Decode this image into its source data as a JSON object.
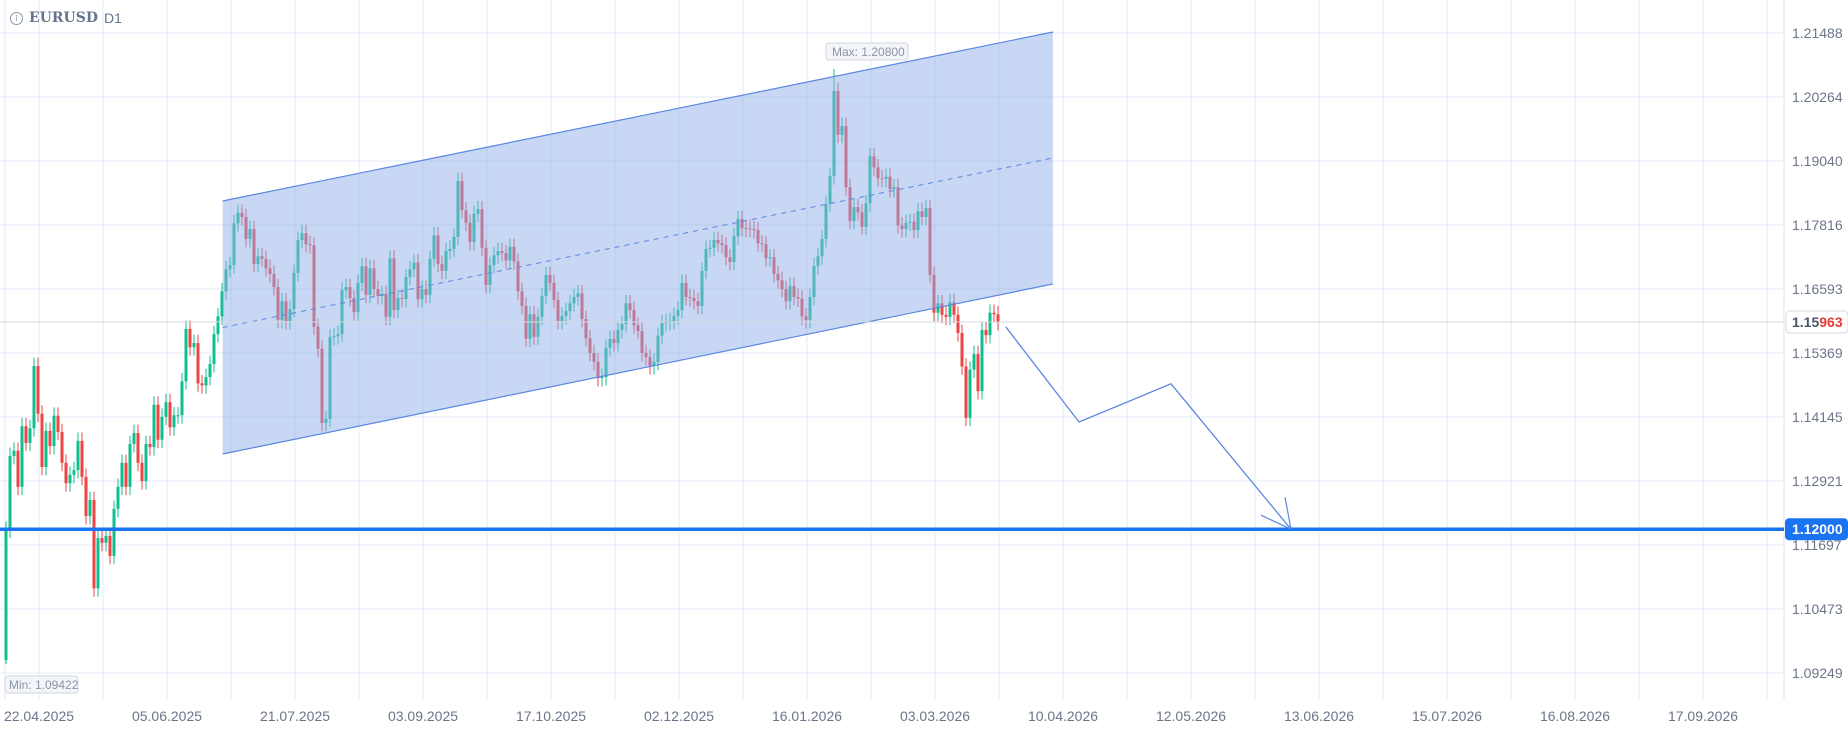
{
  "header": {
    "symbol": "EURUSD",
    "timeframe": "D1",
    "info_icon": "info-circle-icon"
  },
  "colors": {
    "up": "#0fbf8f",
    "down": "#ef4444",
    "channel_line": "#5b87e0",
    "channel_fill": "#8fb0ea",
    "level_line": "#1a73f0",
    "grid": "#e3e9f6",
    "axis_text": "#6b7589"
  },
  "chart_data": {
    "type": "candlestick",
    "title": "",
    "y_ticks": [
      "1.21488",
      "1.20264",
      "1.19040",
      "1.17816",
      "1.16593",
      "1.15369",
      "1.14145",
      "1.12921",
      "1.11697",
      "1.10473",
      "1.09249"
    ],
    "x_ticks": [
      "22.04.2025",
      "05.06.2025",
      "21.07.2025",
      "03.09.2025",
      "17.10.2025",
      "02.12.2025",
      "16.01.2026",
      "03.03.2026",
      "10.04.2026",
      "12.05.2026",
      "13.06.2026",
      "15.07.2026",
      "16.08.2026",
      "17.09.2026"
    ],
    "ylim": [
      1.0867,
      1.2183
    ],
    "first_open": 1.095,
    "closes": [
      1.1199,
      1.134,
      1.135,
      1.1281,
      1.1397,
      1.1365,
      1.1393,
      1.1512,
      1.1421,
      1.1319,
      1.1388,
      1.1359,
      1.1417,
      1.1386,
      1.1327,
      1.1288,
      1.1304,
      1.1313,
      1.1369,
      1.13,
      1.1225,
      1.1256,
      1.1087,
      1.1183,
      1.1174,
      1.1187,
      1.1149,
      1.1239,
      1.1281,
      1.1327,
      1.1281,
      1.1363,
      1.1384,
      1.1327,
      1.1292,
      1.1363,
      1.1357,
      1.1438,
      1.1371,
      1.1415,
      1.1443,
      1.1395,
      1.1418,
      1.1418,
      1.1483,
      1.1583,
      1.1548,
      1.1556,
      1.1479,
      1.1475,
      1.1491,
      1.1516,
      1.1573,
      1.1607,
      1.1655,
      1.1697,
      1.1705,
      1.1785,
      1.1805,
      1.1797,
      1.1755,
      1.1774,
      1.1707,
      1.1722,
      1.1717,
      1.1699,
      1.1688,
      1.1663,
      1.16,
      1.1636,
      1.1598,
      1.1621,
      1.169,
      1.1753,
      1.1766,
      1.1745,
      1.1743,
      1.1587,
      1.1545,
      1.1403,
      1.1411,
      1.1567,
      1.1569,
      1.1573,
      1.1657,
      1.1663,
      1.1642,
      1.1615,
      1.1671,
      1.1703,
      1.1648,
      1.1699,
      1.1659,
      1.1646,
      1.165,
      1.1606,
      1.1718,
      1.1619,
      1.1642,
      1.164,
      1.1682,
      1.1697,
      1.171,
      1.164,
      1.1659,
      1.1648,
      1.1717,
      1.1762,
      1.1707,
      1.1694,
      1.1732,
      1.1736,
      1.1759,
      1.1866,
      1.181,
      1.1786,
      1.1749,
      1.1803,
      1.1812,
      1.1738,
      1.1667,
      1.1705,
      1.1724,
      1.1732,
      1.1728,
      1.1714,
      1.174,
      1.1712,
      1.1655,
      1.1627,
      1.1564,
      1.1611,
      1.1568,
      1.1606,
      1.1646,
      1.1686,
      1.1671,
      1.1638,
      1.1598,
      1.1608,
      1.1617,
      1.1632,
      1.1644,
      1.1651,
      1.1602,
      1.1565,
      1.1537,
      1.152,
      1.1489,
      1.1491,
      1.1547,
      1.1564,
      1.1556,
      1.1581,
      1.1592,
      1.1632,
      1.1619,
      1.159,
      1.1579,
      1.1537,
      1.1529,
      1.1512,
      1.152,
      1.157,
      1.1594,
      1.1596,
      1.1598,
      1.1608,
      1.1619,
      1.1671,
      1.1644,
      1.1642,
      1.1636,
      1.1627,
      1.1694,
      1.1736,
      1.1738,
      1.1753,
      1.1747,
      1.1743,
      1.172,
      1.1711,
      1.176,
      1.1793,
      1.1776,
      1.1775,
      1.1774,
      1.1772,
      1.1747,
      1.1745,
      1.1718,
      1.172,
      1.1688,
      1.1676,
      1.1659,
      1.1636,
      1.1665,
      1.1644,
      1.1641,
      1.1607,
      1.16,
      1.1644,
      1.1703,
      1.1722,
      1.1755,
      1.1822,
      1.1875,
      1.2038,
      1.1954,
      1.1971,
      1.1854,
      1.1789,
      1.1816,
      1.1806,
      1.1778,
      1.1823,
      1.1913,
      1.1892,
      1.1871,
      1.187,
      1.1874,
      1.185,
      1.1854,
      1.1781,
      1.1774,
      1.1786,
      1.1788,
      1.1772,
      1.1808,
      1.1797,
      1.1814,
      1.1686,
      1.1614,
      1.1632,
      1.161,
      1.1606,
      1.1634,
      1.161,
      1.1575,
      1.1511,
      1.1413,
      1.1505,
      1.1535,
      1.1464,
      1.1581,
      1.1571,
      1.1614,
      1.1611,
      1.1596
    ],
    "max": {
      "label": "Max: 1.20800",
      "value": 1.208
    },
    "min": {
      "label": "Min: 1.09422",
      "value": 1.09422
    },
    "last_price": {
      "value": 1.15963,
      "label_main": "1.15",
      "label_tail": "963"
    },
    "level": {
      "value": 1.12,
      "label": "1.12000"
    },
    "channel": {
      "start_date": "25.06.2025",
      "end_date": "07.04.2026",
      "upper": [
        1.18276,
        1.21507
      ],
      "lower": [
        1.13438,
        1.16689
      ]
    },
    "forecast_path": [
      {
        "date": "24.03.2026",
        "price": 1.1587
      },
      {
        "date": "14.04.2026",
        "price": 1.1405
      },
      {
        "date": "07.05.2026",
        "price": 1.1478
      },
      {
        "date": "06.06.2026",
        "price": 1.12
      }
    ]
  }
}
